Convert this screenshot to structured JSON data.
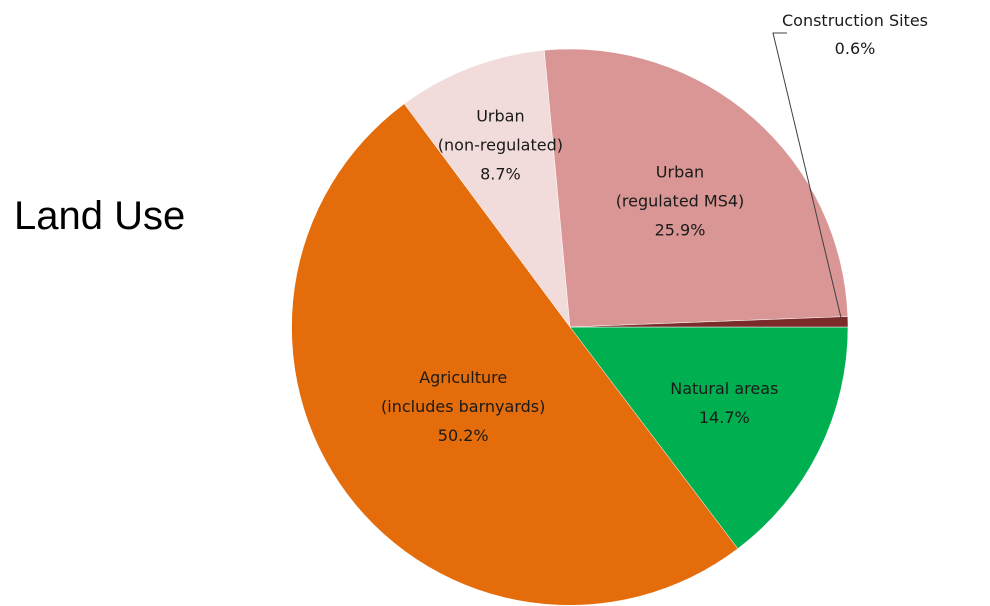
{
  "chart_data": {
    "type": "pie",
    "title": "Land Use",
    "slices": [
      {
        "name": "Natural areas",
        "label_lines": [
          "Natural areas"
        ],
        "value": 14.7,
        "value_label": "14.7%",
        "color": "#00b050"
      },
      {
        "name": "Agriculture (includes barnyards)",
        "label_lines": [
          "Agriculture",
          "(includes barnyards)"
        ],
        "value": 50.2,
        "value_label": "50.2%",
        "color": "#e46c0a"
      },
      {
        "name": "Urban (non-regulated)",
        "label_lines": [
          "Urban",
          "(non-regulated)"
        ],
        "value": 8.7,
        "value_label": "8.7%",
        "color": "#f2dcdb"
      },
      {
        "name": "Urban (regulated MS4)",
        "label_lines": [
          "Urban",
          "(regulated MS4)"
        ],
        "value": 25.9,
        "value_label": "25.9%",
        "color": "#d99694"
      },
      {
        "name": "Construction Sites",
        "label_lines": [
          "Construction Sites"
        ],
        "value": 0.6,
        "value_label": "0.6%",
        "color": "#7b2c2a"
      }
    ]
  }
}
